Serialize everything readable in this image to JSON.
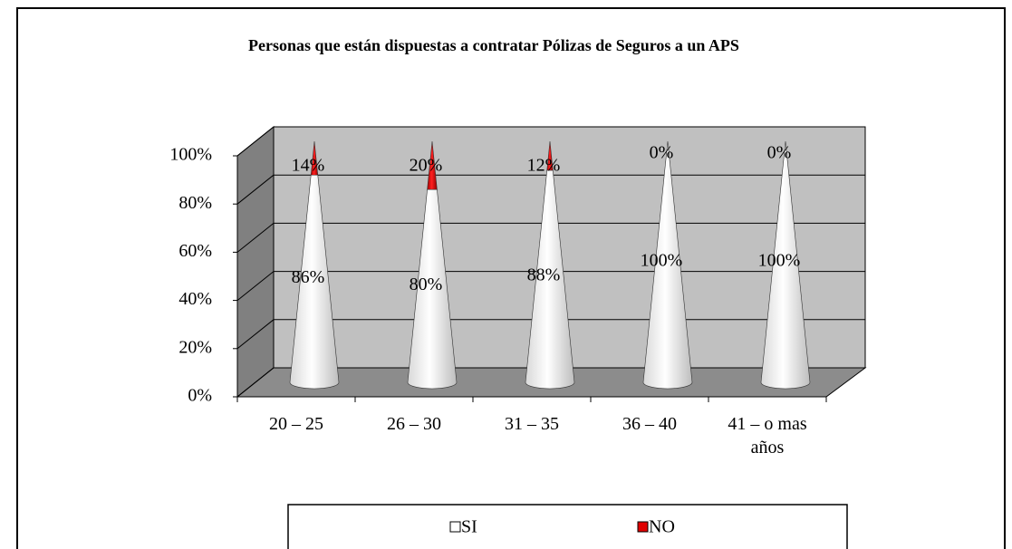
{
  "chart_data": {
    "type": "cone",
    "title": "Personas que están dispuestas a contratar Pólizas de Seguros a un APS",
    "categories": [
      "20 – 25",
      "26 – 30",
      "31 – 35",
      "36 – 40",
      "41 – o mas años"
    ],
    "series": [
      {
        "name": "SI",
        "color": "#ffffff",
        "values": [
          86,
          80,
          88,
          100,
          100
        ],
        "value_labels": [
          "86%",
          "80%",
          "88%",
          "100%",
          "100%"
        ]
      },
      {
        "name": "NO",
        "color": "#e00000",
        "values": [
          14,
          20,
          12,
          0,
          0
        ],
        "value_labels": [
          "14%",
          "20%",
          "12%",
          "0%",
          "0%"
        ]
      }
    ],
    "ylim": [
      0,
      100
    ],
    "yticks": [
      {
        "value": 0,
        "label": "0%"
      },
      {
        "value": 20,
        "label": "20%"
      },
      {
        "value": 40,
        "label": "40%"
      },
      {
        "value": 60,
        "label": "60%"
      },
      {
        "value": 80,
        "label": "80%"
      },
      {
        "value": 100,
        "label": "100%"
      }
    ],
    "grid": true,
    "legend": "bottom"
  }
}
